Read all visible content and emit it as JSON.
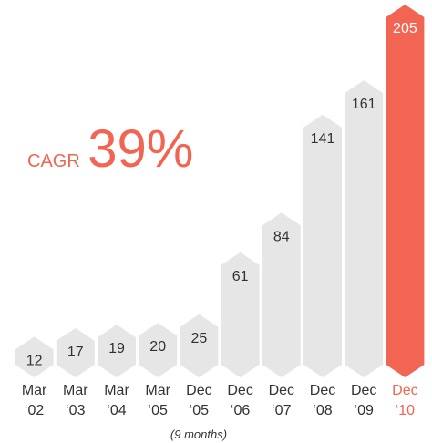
{
  "chart_data": {
    "type": "bar",
    "categories": [
      "Mar ‘02",
      "Mar ‘03",
      "Mar ‘04",
      "Mar ‘05",
      "Dec ‘05",
      "Dec ‘06",
      "Dec ‘07",
      "Dec ‘08",
      "Dec ‘09",
      "Dec ‘10"
    ],
    "values": [
      12,
      17,
      19,
      20,
      25,
      61,
      84,
      141,
      161,
      205
    ],
    "colors": [
      "#e6e6e6",
      "#e6e6e6",
      "#e6e6e6",
      "#e6e6e6",
      "#e6e6e6",
      "#e6e6e6",
      "#e6e6e6",
      "#e6e6e6",
      "#e6e6e6",
      "#f26552"
    ],
    "annotation_label": "CAGR",
    "annotation_value": "39%",
    "note": "(9 months)"
  }
}
